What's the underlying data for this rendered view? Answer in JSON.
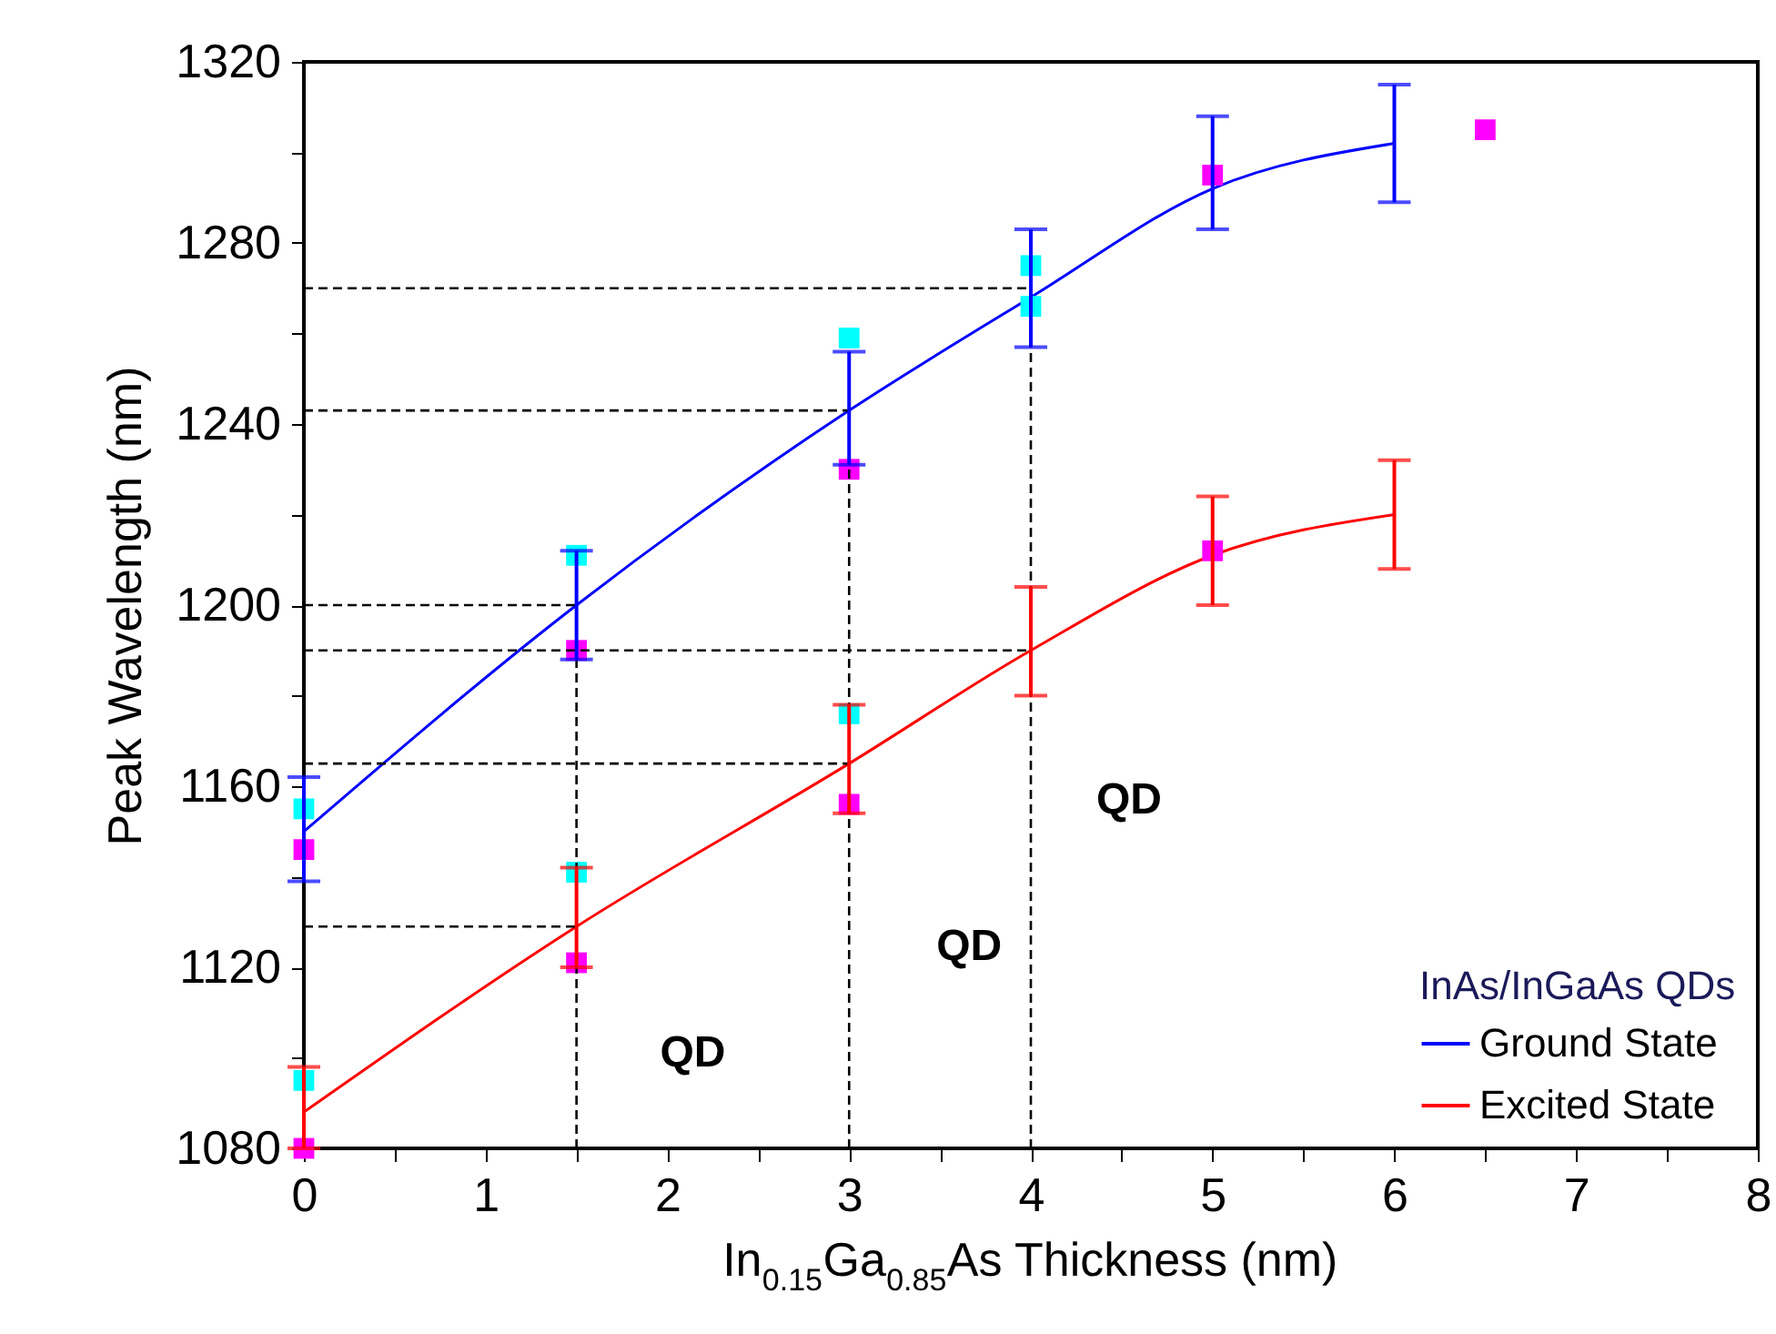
{
  "chart_data": {
    "type": "line",
    "xlabel": "In$_{0.15}$Ga$_{0.85}$As Thickness (nm)",
    "ylabel": "Peak Wavelength (nm)",
    "legend_title": "InAs/InGaAs QDs",
    "xlim": [
      0,
      8
    ],
    "ylim": [
      1080,
      1320
    ],
    "xticks": [
      0,
      {
        "value": 0.5,
        "label": null
      },
      1,
      {
        "value": 1.5,
        "label": null
      },
      2,
      {
        "value": 2.5,
        "label": null
      },
      3,
      {
        "value": 3.5,
        "label": null
      },
      4,
      {
        "value": 4.5,
        "label": null
      },
      5,
      {
        "value": 5.5,
        "label": null
      },
      6,
      {
        "value": 6.5,
        "label": null
      },
      7,
      {
        "value": 7.5,
        "label": null
      },
      8
    ],
    "yticks": [
      1080,
      {
        "value": 1100,
        "label": null
      },
      1120,
      {
        "value": 1140,
        "label": null
      },
      1160,
      {
        "value": 1180,
        "label": null
      },
      1200,
      {
        "value": 1220,
        "label": null
      },
      1240,
      {
        "value": 1260,
        "label": null
      },
      1280,
      {
        "value": 1300,
        "label": null
      },
      1320
    ],
    "grid": false,
    "legend": "bottom right",
    "annotations": [
      "QD",
      "QD",
      "QD"
    ],
    "series": [
      {
        "name": "Ground State",
        "color": "#0000ff",
        "marker": "none",
        "x": [
          0,
          1.5,
          3,
          4,
          5,
          6
        ],
        "values": [
          1150,
          1200,
          1243,
          1268,
          1292,
          1302
        ],
        "errors": [
          [
            1139,
            1162
          ],
          [
            1188,
            1212
          ],
          [
            1231,
            1256
          ],
          [
            1257,
            1283
          ],
          [
            1283,
            1308
          ],
          [
            1289,
            1315
          ]
        ]
      },
      {
        "name": "Excited State",
        "color": "#ff0000",
        "marker": "none",
        "x": [
          0,
          1.5,
          3,
          4,
          5,
          6
        ],
        "values": [
          1088,
          1129,
          1165,
          1190,
          1211,
          1220
        ],
        "errors": [
          [
            1080,
            1098
          ],
          [
            1120,
            1142
          ],
          [
            1154,
            1178
          ],
          [
            1180,
            1204
          ],
          [
            1200,
            1224
          ],
          [
            1208,
            1232
          ]
        ]
      },
      {
        "type": "scatter",
        "color": "#00ffff",
        "marker": "square",
        "x": [
          0,
          0,
          1.5,
          1.5,
          3,
          3,
          4,
          4
        ],
        "values": [
          1155,
          1095,
          1211,
          1141,
          1259,
          1176,
          1275,
          1266
        ]
      },
      {
        "type": "scatter",
        "color": "#ff00ff",
        "marker": "square",
        "x": [
          0,
          0,
          1.5,
          1.5,
          3,
          3,
          5,
          5,
          6.5
        ],
        "values": [
          1146,
          1080,
          1190,
          1121,
          1230,
          1156,
          1295,
          1212,
          1305
        ]
      },
      {
        "color": "#000000",
        "line_style": "dashed",
        "marker": "none",
        "x": [
          0,
          4
        ],
        "values": [
          1270,
          1270
        ]
      },
      {
        "color": "#000000",
        "line_style": "dashed",
        "marker": "none",
        "x": [
          0,
          3
        ],
        "values": [
          1243,
          1243
        ]
      },
      {
        "color": "#000000",
        "line_style": "dashed",
        "marker": "none",
        "x": [
          0,
          1.5
        ],
        "values": [
          1200,
          1200
        ]
      },
      {
        "color": "#000000",
        "line_style": "dashed",
        "marker": "none",
        "x": [
          0,
          4
        ],
        "values": [
          1190,
          1190
        ]
      },
      {
        "color": "#000000",
        "line_style": "dashed",
        "marker": "none",
        "x": [
          0,
          3
        ],
        "values": [
          1165,
          1165
        ]
      },
      {
        "color": "#000000",
        "line_style": "dashed",
        "marker": "none",
        "x": [
          0,
          1.5
        ],
        "values": [
          1129,
          1129
        ]
      },
      {
        "color": "#000000",
        "line_style": "dashed",
        "marker": "none",
        "x": [
          1.5,
          1.5
        ],
        "values": [
          1080,
          1190
        ]
      },
      {
        "color": "#000000",
        "line_style": "dashed",
        "marker": "none",
        "x": [
          3,
          3
        ],
        "values": [
          1080,
          1231
        ]
      },
      {
        "color": "#000000",
        "line_style": "dashed",
        "marker": "none",
        "x": [
          4,
          4
        ],
        "values": [
          1080,
          1268
        ]
      }
    ]
  }
}
